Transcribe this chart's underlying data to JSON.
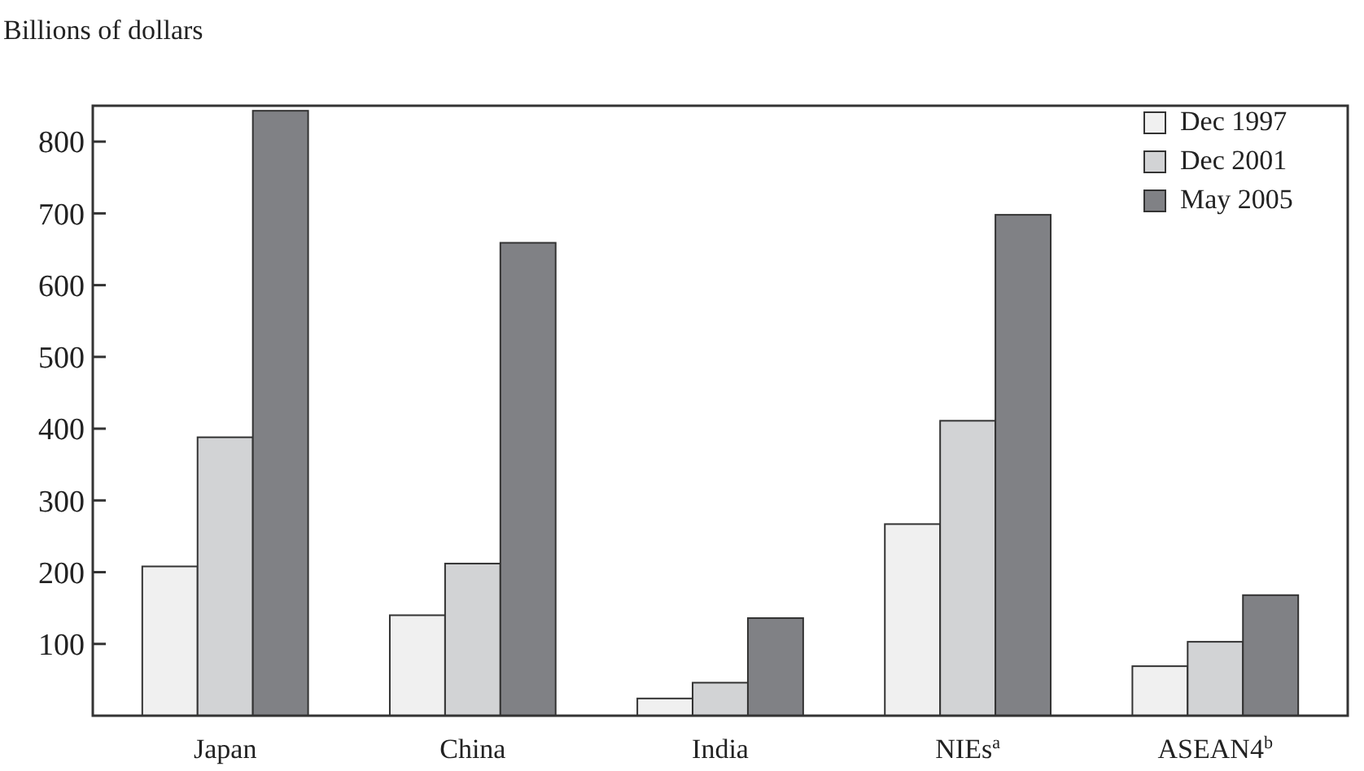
{
  "chart_data": {
    "type": "bar",
    "ylabel": "Billions of dollars",
    "categories": [
      "Japan",
      "China",
      "India",
      "NIEs$^{a}$",
      "ASEAN4$^{b}$"
    ],
    "series": [
      {
        "name": "Dec 1997",
        "color": "#f0f0f0",
        "values": [
          208,
          140,
          24,
          267,
          69
        ]
      },
      {
        "name": "Dec 2001",
        "color": "#d2d3d5",
        "values": [
          388,
          212,
          46,
          411,
          103
        ]
      },
      {
        "name": "May 2005",
        "color": "#808185",
        "values": [
          843,
          659,
          136,
          698,
          168
        ]
      }
    ],
    "ylim": [
      0,
      850
    ],
    "yticks": [
      100,
      200,
      300,
      400,
      500,
      600,
      700,
      800
    ],
    "grid": false,
    "legend": "top right"
  }
}
